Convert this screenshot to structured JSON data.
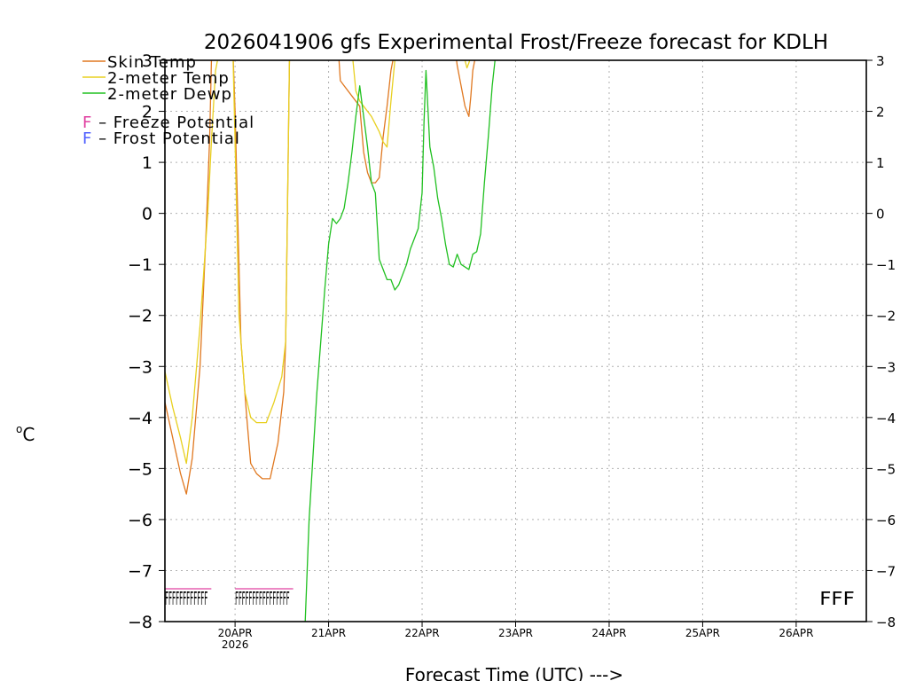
{
  "chart_data": {
    "type": "line",
    "title": "2026041906 gfs Experimental Frost/Freeze forecast for KDLH",
    "xlabel": "Forecast Time (UTC) --->",
    "ylabel": "°C",
    "ylabel_parts": {
      "degree": "o",
      "unit": "C"
    },
    "ylim": [
      -8,
      3
    ],
    "yticks": [
      3,
      2,
      1,
      0,
      -1,
      -2,
      -3,
      -4,
      -5,
      -6,
      -7,
      -8
    ],
    "ytick_labels_left": [
      "3",
      "2",
      "1",
      "0",
      "−1",
      "−2",
      "−3",
      "−4",
      "−5",
      "−6",
      "−7",
      "−8"
    ],
    "ytick_labels_right": [
      "3",
      "2",
      "1",
      "0",
      "−1",
      "−2",
      "−3",
      "−4",
      "−5",
      "−6",
      "−7",
      "−8"
    ],
    "x_unit": "hours since 2026-04-19 06 UTC",
    "xlim": [
      0,
      180
    ],
    "xticks": [
      {
        "x": 18,
        "label": "20APR",
        "sublabel": "2026"
      },
      {
        "x": 42,
        "label": "21APR"
      },
      {
        "x": 66,
        "label": "22APR"
      },
      {
        "x": 90,
        "label": "23APR"
      },
      {
        "x": 114,
        "label": "24APR"
      },
      {
        "x": 138,
        "label": "25APR"
      },
      {
        "x": 162,
        "label": "26APR"
      }
    ],
    "grid": true,
    "legend": "top-left",
    "legend_entries": [
      {
        "name": "Skin Temp",
        "color": "#e07820"
      },
      {
        "name": "2-meter Temp",
        "color": "#e8d020"
      },
      {
        "name": "2-meter Dewp",
        "color": "#20c020"
      }
    ],
    "potential_legend": [
      {
        "symbol": "F",
        "text": " – Freeze Potential",
        "color": "#e040a0"
      },
      {
        "symbol": "F",
        "text": " – Frost Potential",
        "color": "#5060ff"
      }
    ],
    "series": [
      {
        "name": "Skin Temp",
        "color": "#e07820",
        "x": [
          0,
          2,
          4,
          5.5,
          7,
          9,
          10.5,
          11.5,
          12,
          13,
          14,
          16,
          17.5,
          18,
          19.5,
          21,
          22,
          23.5,
          25,
          27,
          29,
          30.5,
          31,
          32,
          44.5,
          45,
          46,
          48,
          50,
          51,
          52,
          53,
          54,
          55,
          56,
          57,
          58,
          59,
          60,
          74.5,
          75,
          76,
          77,
          78,
          78.5,
          79,
          80
        ],
        "y": [
          -3.7,
          -4.4,
          -5.1,
          -5.5,
          -4.8,
          -3.0,
          -0.5,
          1.5,
          3.2,
          3.2,
          3.2,
          3.2,
          3.1,
          2.0,
          -2.5,
          -4.0,
          -4.9,
          -5.1,
          -5.2,
          -5.2,
          -4.5,
          -3.5,
          -2.5,
          3.2,
          3.2,
          2.6,
          2.5,
          2.3,
          2.1,
          1.2,
          0.8,
          0.6,
          0.6,
          0.7,
          1.5,
          2.1,
          2.8,
          3.2,
          3.2,
          3.2,
          2.9,
          2.5,
          2.1,
          1.9,
          2.3,
          2.8,
          3.2
        ]
      },
      {
        "name": "2-meter Temp",
        "color": "#e8d020",
        "x": [
          0,
          2,
          4,
          5.5,
          7,
          9,
          11,
          12,
          13,
          14,
          15,
          16,
          17.5,
          18,
          19,
          20.5,
          22,
          23.5,
          24.5,
          26,
          28,
          30,
          31,
          32,
          48,
          49,
          50,
          51,
          53,
          55,
          56,
          57,
          58,
          59,
          60,
          76,
          77,
          77.5,
          78,
          79
        ],
        "y": [
          -3.1,
          -3.8,
          -4.4,
          -4.9,
          -4.0,
          -2.2,
          0.0,
          1.5,
          2.8,
          3.2,
          3.2,
          3.2,
          3.0,
          1.4,
          -2.0,
          -3.5,
          -4.0,
          -4.1,
          -4.1,
          -4.1,
          -3.7,
          -3.2,
          -2.5,
          3.2,
          3.2,
          2.4,
          2.2,
          2.1,
          1.9,
          1.6,
          1.4,
          1.3,
          2.2,
          3.0,
          3.2,
          3.2,
          3.0,
          2.85,
          2.95,
          3.2
        ]
      },
      {
        "name": "2-meter Dewp",
        "color": "#20c020",
        "x": [
          36,
          37,
          39,
          41,
          42,
          43,
          44,
          45,
          46,
          47,
          48,
          49,
          50,
          52,
          53,
          54,
          55,
          56,
          57,
          58,
          59,
          60,
          61,
          62,
          63,
          64,
          65,
          66,
          66.5,
          67,
          68,
          69,
          70,
          71,
          72,
          73,
          74,
          75,
          76,
          77,
          78,
          79,
          80,
          81,
          82,
          83,
          84,
          85
        ],
        "y": [
          -8.0,
          -6.0,
          -3.5,
          -1.5,
          -0.6,
          -0.1,
          -0.2,
          -0.1,
          0.1,
          0.6,
          1.2,
          1.9,
          2.5,
          1.3,
          0.6,
          0.4,
          -0.9,
          -1.1,
          -1.3,
          -1.3,
          -1.5,
          -1.4,
          -1.2,
          -1.0,
          -0.7,
          -0.5,
          -0.3,
          0.4,
          1.8,
          2.8,
          1.3,
          0.9,
          0.3,
          -0.1,
          -0.6,
          -1.0,
          -1.05,
          -0.8,
          -1.0,
          -1.05,
          -1.1,
          -0.8,
          -0.75,
          -0.4,
          0.6,
          1.5,
          2.5,
          3.2
        ]
      }
    ],
    "potential_markers": [
      {
        "start": 0,
        "end": 11,
        "type": "freeze",
        "color": "#e040a0",
        "text": "FFFFFFFFFFFF"
      },
      {
        "start": 18,
        "end": 32,
        "type": "freeze",
        "color": "#e040a0",
        "text": "FFFFFFFFFFFFFFFF"
      },
      {
        "start": 168,
        "end": 177,
        "type": "freeze",
        "color": "#e040a0",
        "text": "FFF"
      }
    ]
  }
}
